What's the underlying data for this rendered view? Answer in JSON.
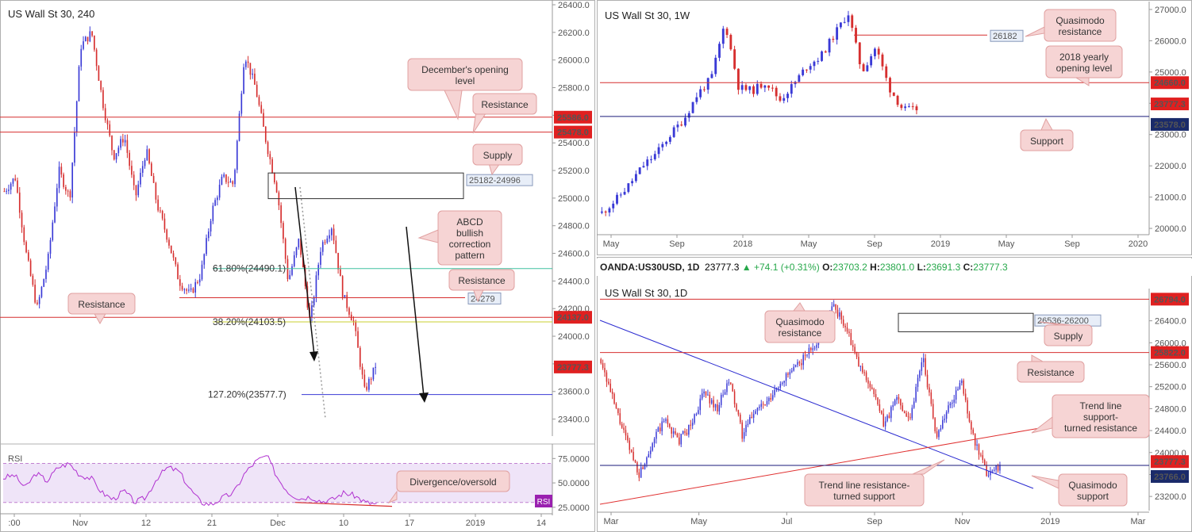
{
  "colors": {
    "bull": "#3a3ad6",
    "bear": "#d62f2f",
    "resistance_line": "#d62f2f",
    "support_line": "#1a1a7a",
    "fib_61": "#40c0a0",
    "fib_38": "#c8d030",
    "fib_127": "#3a3ad6",
    "trend_blue": "#2a2ad0",
    "trend_red": "#e03030",
    "callout_bg": "#f6d4d4",
    "callout_border": "#e0a0a0",
    "label_box_bg": "#e8eef8",
    "rsi_bg": "#efe4f8",
    "rsi_line": "#b030d0",
    "price_tag_red": "#e02020",
    "price_tag_navy": "#1a2a6a"
  },
  "chart_data": [
    {
      "id": "h4",
      "type": "candlestick",
      "title": "US Wall St 30, 240",
      "ylim": [
        23300,
        26400
      ],
      "y_ticks": [
        "26400.0",
        "26200.0",
        "26000.0",
        "25800.0",
        "25600.0",
        "25400.0",
        "25200.0",
        "25000.0",
        "24800.0",
        "24600.0",
        "24400.0",
        "24200.0",
        "24000.0",
        "23800.0",
        "23600.0",
        "23400.0"
      ],
      "x_ticks": [
        ":00",
        "Nov",
        "12",
        "21",
        "Dec",
        "10",
        "17",
        "2019",
        "14"
      ],
      "path": [
        25050,
        25150,
        24600,
        24200,
        24550,
        25200,
        25000,
        26100,
        26200,
        25700,
        25300,
        25450,
        25000,
        25350,
        24950,
        24700,
        24400,
        24300,
        24450,
        24900,
        25150,
        25100,
        26050,
        25800,
        25400,
        25050,
        24400,
        24700,
        24100,
        24650,
        24800,
        24300,
        24100,
        23600,
        23777
      ],
      "levels": [
        {
          "name": "Resistance",
          "value": 25586.0,
          "tag": "25586.0",
          "style": "resistance"
        },
        {
          "name": "December's opening level",
          "value": 25478.0,
          "tag": "25478.0",
          "style": "resistance"
        },
        {
          "name": "Resistance",
          "value": 24137.0,
          "tag": "24137.0",
          "style": "resistance"
        },
        {
          "name": "Resistance",
          "value": 24279,
          "tag": "24279",
          "style": "resistance-short"
        },
        {
          "name": "61.80%(24490.1)",
          "value": 24490.1,
          "style": "fib61"
        },
        {
          "name": "38.20%(24103.5)",
          "value": 24103.5,
          "style": "fib38"
        },
        {
          "name": "127.20%(23577.7)",
          "value": 23577.7,
          "style": "fib127"
        },
        {
          "name": "Current",
          "value": 23777.3,
          "tag": "23777.3",
          "style": "current"
        }
      ],
      "zones": [
        {
          "label": "25182-24996",
          "from": 24996,
          "to": 25182
        }
      ],
      "annotations": [
        "December's opening level",
        "Resistance",
        "Supply",
        "ABCD bullish correction pattern",
        "Resistance",
        "Resistance"
      ]
    },
    {
      "id": "rsi",
      "type": "line",
      "title": "RSI",
      "ylim": [
        20,
        85
      ],
      "y_ticks": [
        "75.0000",
        "50.0000",
        "25.0000"
      ],
      "levels": [
        70,
        30
      ],
      "values": [
        55,
        58,
        45,
        60,
        52,
        66,
        70,
        58,
        55,
        40,
        33,
        42,
        30,
        35,
        55,
        66,
        62,
        44,
        30,
        28,
        35,
        40,
        60,
        72,
        78,
        55,
        40,
        34,
        36,
        31,
        33,
        40,
        37,
        30,
        28
      ],
      "annotation": "Divergence/oversold",
      "tag": "RSI"
    },
    {
      "id": "weekly",
      "type": "candlestick",
      "title": "US Wall St 30, 1W",
      "ylim": [
        19900,
        27100
      ],
      "y_ticks": [
        "27000.0",
        "26000.0",
        "25000.0",
        "24000.0",
        "23000.0",
        "22000.0",
        "21000.0",
        "20000.0"
      ],
      "x_ticks": [
        "May",
        "Sep",
        "2018",
        "May",
        "Sep",
        "2019",
        "May",
        "Sep",
        "2020"
      ],
      "path": [
        20500,
        20900,
        21400,
        22000,
        22400,
        23000,
        23500,
        24300,
        24800,
        26600,
        24500,
        24400,
        24700,
        24100,
        24600,
        25200,
        25500,
        26200,
        26900,
        25000,
        25800,
        24500,
        23800,
        23777
      ],
      "levels": [
        {
          "name": "Quasimodo resistance",
          "value": 26182,
          "tag": "26182",
          "style": "resistance-short"
        },
        {
          "name": "2018 yearly opening level",
          "value": 24660.0,
          "tag": "24660.0",
          "style": "resistance"
        },
        {
          "name": "Support",
          "value": 23578.0,
          "tag": "23578.0",
          "style": "support"
        },
        {
          "name": "Current",
          "value": 23777.3,
          "tag": "23777.3",
          "style": "current"
        }
      ],
      "annotations": [
        "Quasimodo resistance",
        "2018 yearly opening level",
        "Support"
      ]
    },
    {
      "id": "daily",
      "type": "candlestick",
      "title": "US Wall St 30, 1D",
      "ylim": [
        23000,
        26900
      ],
      "y_ticks": [
        "26400.0",
        "26000.0",
        "25600.0",
        "25200.0",
        "24800.0",
        "24400.0",
        "24000.0",
        "23600.0",
        "23200.0"
      ],
      "x_ticks": [
        "Mar",
        "May",
        "Jul",
        "Sep",
        "Nov",
        "2019",
        "Mar"
      ],
      "path": [
        25700,
        24900,
        24200,
        23600,
        24200,
        24600,
        24200,
        24500,
        25100,
        24800,
        25300,
        24300,
        24800,
        24900,
        25300,
        25500,
        25800,
        26100,
        26700,
        26300,
        25600,
        25200,
        24500,
        25000,
        24600,
        25800,
        24300,
        24800,
        25300,
        24200,
        23600,
        23777
      ],
      "levels": [
        {
          "name": "Quasimodo resistance",
          "value": 26794.0,
          "tag": "26794.0",
          "style": "resistance"
        },
        {
          "name": "Resistance",
          "value": 25822.0,
          "tag": "25822.0",
          "style": "resistance"
        },
        {
          "name": "Current",
          "value": 23777.3,
          "tag": "23777.3",
          "style": "current"
        },
        {
          "name": "Quasimodo support",
          "value": 23766.0,
          "tag": "23766.0",
          "style": "support"
        }
      ],
      "zones": [
        {
          "label": "26536-26200",
          "from": 26200,
          "to": 26536
        }
      ],
      "annotations": [
        "Quasimodo resistance",
        "Supply",
        "Resistance",
        "Trend line support-turned resistance",
        "Trend line resistance-turned support",
        "Quasimodo support"
      ]
    }
  ],
  "header": {
    "symbol": "OANDA:US30USD, 1D",
    "price": "23777.3",
    "change": "+74.1 (+0.31%)",
    "open_label": "O:",
    "open": "23703.2",
    "high_label": "H:",
    "high": "23801.0",
    "low_label": "L:",
    "low": "23691.3",
    "close_label": "C:",
    "close": "23777.3"
  },
  "callouts": {
    "dec_open": [
      "December's opening",
      "level"
    ],
    "res_h4_top": [
      "Resistance"
    ],
    "supply_h4": [
      "Supply"
    ],
    "abcd": [
      "ABCD",
      "bullish",
      "correction",
      "pattern"
    ],
    "res_h4_mid": [
      "Resistance"
    ],
    "res_h4_left": [
      "Resistance"
    ],
    "rsi_div": [
      "Divergence/oversold"
    ],
    "qm_res_w": [
      "Quasimodo",
      "resistance"
    ],
    "yearly_open": [
      "2018 yearly",
      "opening level"
    ],
    "support_w": [
      "Support"
    ],
    "qm_res_d": [
      "Quasimodo",
      "resistance"
    ],
    "supply_d": [
      "Supply"
    ],
    "res_d": [
      "Resistance"
    ],
    "tl_res_d": [
      "Trend line",
      "support-",
      "turned resistance"
    ],
    "tl_sup_d": [
      "Trend line resistance-",
      "turned support"
    ],
    "qm_sup_d": [
      "Quasimodo",
      "support"
    ]
  },
  "level_labels": {
    "fib61": "61.80%(24490.1)",
    "fib38": "38.20%(24103.5)",
    "fib127": "127.20%(23577.7)"
  }
}
